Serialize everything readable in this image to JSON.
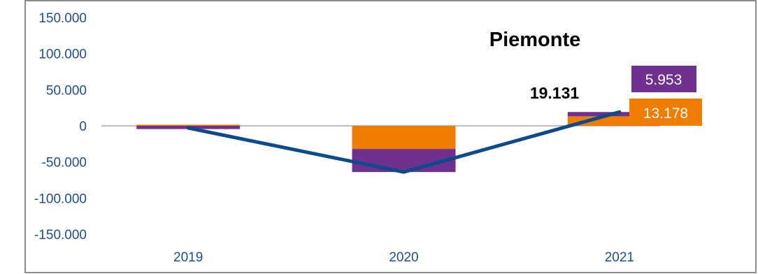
{
  "chart_data": {
    "type": "bar",
    "stacked": true,
    "title": "Piemonte",
    "categories": [
      "2019",
      "2020",
      "2021"
    ],
    "ylim": [
      -150000,
      150000
    ],
    "yticks": [
      150000,
      100000,
      50000,
      0,
      -50000,
      -100000,
      -150000
    ],
    "ytick_labels": [
      "150.000",
      "100.000",
      "50.000",
      "0",
      "-50.000",
      "-100.000",
      "-150.000"
    ],
    "series": [
      {
        "values": [
          1500,
          -32000,
          13178
        ],
        "color": "#f07c00",
        "kind": "bar"
      },
      {
        "values": [
          -4500,
          -32000,
          5953
        ],
        "color": "#70308f",
        "kind": "bar"
      },
      {
        "values": [
          -3000,
          -64000,
          19131
        ],
        "color": "#0b4a8b",
        "kind": "line"
      }
    ],
    "labels": {
      "total_2021": "19.131",
      "series1_2021": "13.178",
      "series2_2021": "5.953"
    },
    "grid": false,
    "legend": "none"
  }
}
